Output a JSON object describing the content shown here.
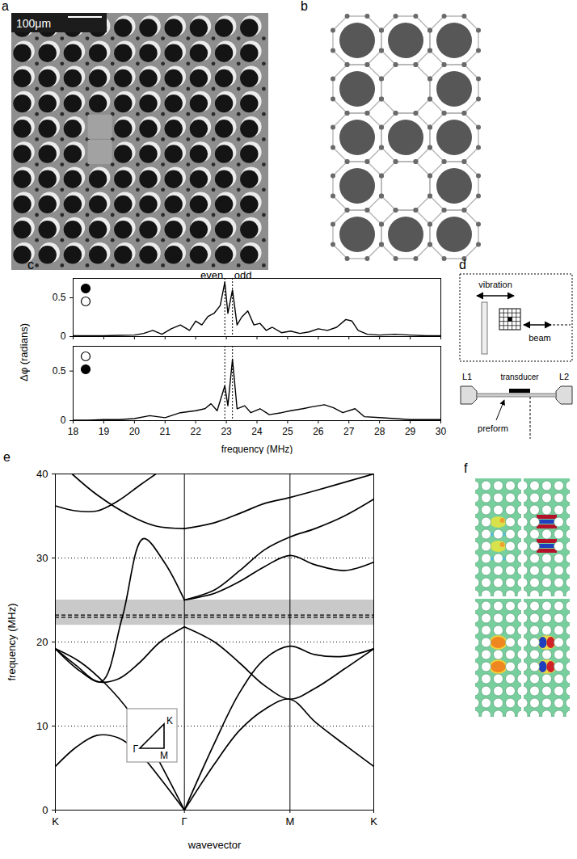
{
  "panels": {
    "a": {
      "label": "a",
      "scale_bar": "100μm"
    },
    "b": {
      "label": "b"
    },
    "c": {
      "label": "c"
    },
    "d": {
      "label": "d",
      "vibration": "vibration",
      "beam": "beam",
      "L1": "L1",
      "L2": "L2",
      "transducer": "transducer",
      "preform": "preform"
    },
    "e": {
      "label": "e",
      "inset": [
        "Γ",
        "M",
        "K"
      ]
    },
    "f": {
      "label": "f"
    }
  },
  "chart_data": [
    {
      "type": "line",
      "color": "#000000",
      "x": [
        18,
        18.5,
        19,
        19.5,
        20,
        20.3,
        20.6,
        20.9,
        21.2,
        21.5,
        21.8,
        22,
        22.2,
        22.4,
        22.6,
        22.8,
        22.95,
        23.05,
        23.2,
        23.35,
        23.5,
        23.7,
        23.9,
        24.1,
        24.3,
        24.5,
        24.8,
        25.1,
        25.4,
        25.7,
        26,
        26.3,
        26.6,
        26.9,
        27.1,
        27.3,
        27.6,
        28,
        28.5,
        29,
        29.5,
        30
      ],
      "values": [
        0.01,
        0.01,
        0.01,
        0.015,
        0.02,
        0.04,
        0.08,
        0.03,
        0.1,
        0.15,
        0.08,
        0.2,
        0.15,
        0.26,
        0.3,
        0.4,
        0.7,
        0.3,
        0.6,
        0.15,
        0.25,
        0.33,
        0.15,
        0.17,
        0.08,
        0.12,
        0.05,
        0.07,
        0.04,
        0.06,
        0.1,
        0.08,
        0.12,
        0.22,
        0.2,
        0.08,
        0.03,
        0.02,
        0.03,
        0.02,
        0.01,
        0.01
      ],
      "xlim": [
        18,
        30
      ],
      "xticks": [
        18,
        19,
        20,
        21,
        22,
        23,
        24,
        25,
        26,
        27,
        28,
        29,
        30
      ],
      "ylim": [
        0,
        0.75
      ],
      "yticks": [
        0,
        0.5
      ],
      "ylabel": "Δφ (radians)",
      "tick_labels": "y",
      "reference_lines": [
        22.95,
        23.2
      ],
      "annotations": [
        {
          "x": 22.95,
          "text": "even"
        },
        {
          "x": 23.2,
          "text": "odd"
        }
      ]
    },
    {
      "type": "line",
      "color": "#000000",
      "x": [
        18,
        18.5,
        19,
        19.5,
        20,
        20.5,
        21,
        21.5,
        22,
        22.3,
        22.5,
        22.7,
        22.95,
        23.05,
        23.2,
        23.35,
        23.6,
        23.8,
        24.1,
        24.4,
        24.8,
        25.1,
        25.5,
        25.8,
        26.2,
        26.5,
        26.8,
        27.2,
        27.5,
        28,
        28.5,
        29,
        29.5,
        30
      ],
      "values": [
        0.005,
        0.005,
        0.01,
        0.01,
        0.02,
        0.05,
        0.03,
        0.08,
        0.1,
        0.12,
        0.17,
        0.1,
        0.35,
        0.15,
        0.62,
        0.12,
        0.15,
        0.08,
        0.12,
        0.06,
        0.08,
        0.1,
        0.12,
        0.14,
        0.16,
        0.13,
        0.08,
        0.12,
        0.04,
        0.03,
        0.02,
        0.01,
        0.01,
        0.01
      ],
      "xlim": [
        18,
        30
      ],
      "xticks": [
        18,
        19,
        20,
        21,
        22,
        23,
        24,
        25,
        26,
        27,
        28,
        29,
        30
      ],
      "ylim": [
        0,
        0.75
      ],
      "yticks": [
        0,
        0.5
      ],
      "xlabel": "frequency (MHz)",
      "reference_lines": [
        22.95,
        23.2
      ]
    },
    {
      "type": "line",
      "color": "#000000",
      "bands": [
        {
          "x": [
            0,
            0.25,
            0.5,
            0.75,
            1.0,
            1.25,
            1.54
          ],
          "values": [
            5.2,
            7.5,
            8.9,
            8.6,
            6.8,
            3.8,
            0
          ]
        },
        {
          "x": [
            0,
            0.3,
            0.6,
            0.9,
            1.2,
            1.54
          ],
          "values": [
            19.2,
            17.6,
            15,
            11.5,
            6.5,
            0
          ]
        },
        {
          "x": [
            0,
            0.25,
            0.5,
            0.75,
            1.0,
            1.25,
            1.54
          ],
          "values": [
            19.2,
            17.2,
            15.3,
            15.6,
            17.5,
            20,
            21.8
          ]
        },
        {
          "x": [
            0,
            0.3,
            0.55,
            0.8,
            1.05,
            1.3,
            1.54
          ],
          "values": [
            19.2,
            16.5,
            15.3,
            23,
            32.3,
            29.5,
            25
          ]
        },
        {
          "x": [
            0,
            0.25,
            0.5,
            0.75,
            1.0,
            1.2
          ],
          "values": [
            36.2,
            35.6,
            35.6,
            36.8,
            38.6,
            40
          ]
        },
        {
          "x": [
            0.2,
            0.5,
            0.9,
            1.2,
            1.54
          ],
          "values": [
            40,
            37.5,
            35,
            33.8,
            33.5
          ]
        },
        {
          "x": [
            1.54,
            1.9,
            2.2,
            2.5,
            2.8,
            3.1,
            3.45,
            3.8
          ],
          "values": [
            0,
            5.5,
            9.5,
            12,
            13.2,
            10.5,
            7.8,
            5.2
          ]
        },
        {
          "x": [
            1.54,
            1.9,
            2.2,
            2.5,
            2.8,
            3.1,
            3.45,
            3.8
          ],
          "values": [
            0,
            8,
            14,
            18,
            19.5,
            18.5,
            18.3,
            19.2
          ]
        },
        {
          "x": [
            1.54,
            1.9,
            2.2,
            2.5,
            2.8,
            3.1,
            3.45,
            3.8
          ],
          "values": [
            21.8,
            20,
            17.5,
            14.8,
            13.2,
            14.5,
            16.8,
            19.2
          ]
        },
        {
          "x": [
            1.54,
            1.9,
            2.2,
            2.5,
            2.8,
            3.1,
            3.45,
            3.8
          ],
          "values": [
            25,
            26.2,
            28.5,
            31,
            32.5,
            33.5,
            35,
            37
          ]
        },
        {
          "x": [
            1.54,
            1.9,
            2.2,
            2.5,
            2.8,
            3.1,
            3.45,
            3.8
          ],
          "values": [
            25,
            25.8,
            27.2,
            29,
            30.3,
            29.2,
            28.5,
            29.5
          ]
        },
        {
          "x": [
            1.54,
            1.9,
            2.2,
            2.5,
            2.8,
            3.1,
            3.45,
            3.8
          ],
          "values": [
            33.5,
            34.2,
            35.3,
            36.5,
            37.2,
            38,
            39,
            40
          ]
        }
      ],
      "xlim": [
        0,
        3.8
      ],
      "xticks": [
        {
          "value": 0,
          "label": "K"
        },
        {
          "value": 1.54,
          "label": "Γ"
        },
        {
          "value": 2.8,
          "label": "M"
        },
        {
          "value": 3.8,
          "label": "K"
        }
      ],
      "ylim": [
        0,
        40
      ],
      "yticks": [
        0,
        10,
        20,
        30,
        40
      ],
      "xlabel": "wavevector",
      "ylabel": "frequency (MHz)",
      "grid": true,
      "band_gap": [
        22,
        25
      ],
      "reference_lines": [
        22.95,
        23.2
      ]
    }
  ]
}
